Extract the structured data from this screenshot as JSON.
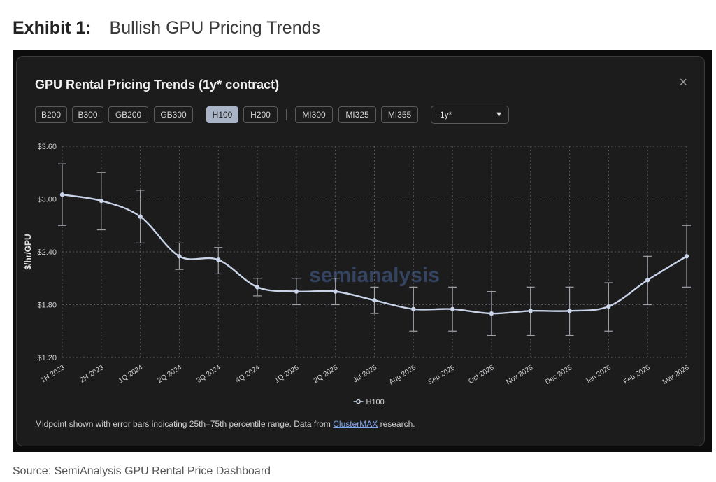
{
  "exhibit": {
    "label": "Exhibit 1:",
    "title": "Bullish GPU Pricing Trends"
  },
  "panel": {
    "title": "GPU Rental Pricing Trends (1y* contract)",
    "close_icon": "×",
    "gpu_buttons": [
      "B200",
      "B300",
      "GB200",
      "GB300",
      "H100",
      "H200"
    ],
    "amd_buttons": [
      "MI300",
      "MI325",
      "MI355"
    ],
    "active_button": "H100",
    "contract_select": "1y*",
    "note_before_link": "Midpoint shown with error bars indicating 25th–75th percentile range. Data from ",
    "note_link": "ClusterMAX",
    "note_after_link": " research."
  },
  "watermark": "semianalysis",
  "colors": {
    "line": "#c9d4e8",
    "grid": "#5b5b5f",
    "panel_bg": "#1c1c1d",
    "active_button": "#a9b4c7",
    "link": "#7fa7ec"
  },
  "chart_data": {
    "type": "line",
    "ylabel": "$/hr/GPU",
    "xlabel": "",
    "ylim": [
      1.2,
      3.6
    ],
    "y_ticks": [
      "$1.20",
      "$1.80",
      "$2.40",
      "$3.00",
      "$3.60"
    ],
    "y_tick_values": [
      1.2,
      1.8,
      2.4,
      3.0,
      3.6
    ],
    "grid": true,
    "legend_position": "bottom-center",
    "categories": [
      "1H 2023",
      "2H 2023",
      "1Q 2024",
      "2Q 2024",
      "3Q 2024",
      "4Q 2024",
      "1Q 2025",
      "2Q 2025",
      "Jul 2025",
      "Aug 2025",
      "Sep 2025",
      "Oct 2025",
      "Nov 2025",
      "Dec 2025",
      "Jan 2026",
      "Feb 2026",
      "Mar 2026"
    ],
    "series": [
      {
        "name": "H100",
        "values": [
          3.05,
          2.98,
          2.8,
          2.35,
          2.31,
          2.0,
          1.95,
          1.95,
          1.85,
          1.75,
          1.75,
          1.7,
          1.73,
          1.73,
          1.78,
          2.08,
          2.35
        ],
        "error_low": [
          2.7,
          2.65,
          2.5,
          2.2,
          2.15,
          1.9,
          1.8,
          1.8,
          1.7,
          1.5,
          1.5,
          1.45,
          1.45,
          1.45,
          1.5,
          1.8,
          2.0
        ],
        "error_high": [
          3.4,
          3.3,
          3.1,
          2.5,
          2.45,
          2.1,
          2.1,
          2.1,
          2.0,
          2.0,
          2.0,
          1.95,
          2.0,
          2.0,
          2.05,
          2.35,
          2.7
        ]
      }
    ]
  },
  "source": "Source: SemiAnalysis GPU Rental Price Dashboard"
}
